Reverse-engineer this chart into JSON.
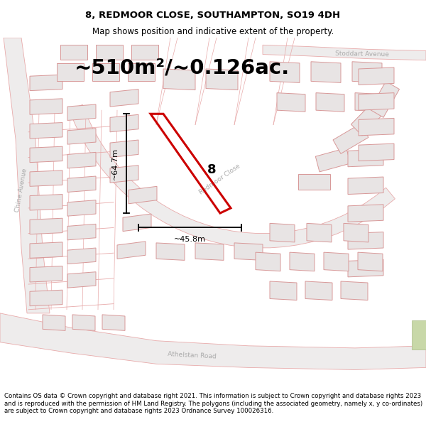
{
  "title": "8, REDMOOR CLOSE, SOUTHAMPTON, SO19 4DH",
  "subtitle": "Map shows position and indicative extent of the property.",
  "area_text": "~510m²/~0.126ac.",
  "dim_vertical": "~64.7m",
  "dim_horizontal": "~45.8m",
  "property_number": "8",
  "footer_text": "Contains OS data © Crown copyright and database right 2021. This information is subject to Crown copyright and database rights 2023 and is reproduced with the permission of HM Land Registry. The polygons (including the associated geometry, namely x, y co-ordinates) are subject to Crown copyright and database rights 2023 Ordnance Survey 100026316.",
  "bg_color": "#ffffff",
  "map_bg": "#f8f5f5",
  "street_color": "#e8aaaa",
  "highlight_color": "#cc0000",
  "building_fill": "#e8e4e4",
  "building_edge": "#d89898",
  "title_fontsize": 9.5,
  "subtitle_fontsize": 8.5,
  "area_fontsize": 21,
  "dim_fontsize": 8,
  "footer_fontsize": 6.2,
  "road_label_color": "#aaaaaa",
  "road_label_fontsize": 6.5
}
